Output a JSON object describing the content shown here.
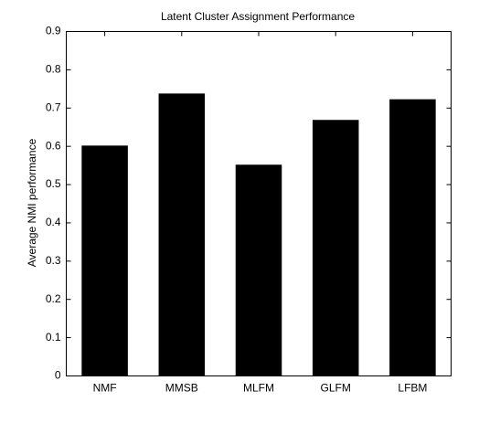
{
  "chart_data": {
    "type": "bar",
    "title": "Latent Cluster Assignment Performance",
    "y_label": "Average NMI performance",
    "categories": [
      "NMF",
      "MMSB",
      "MLFM",
      "GLFM",
      "LFBM"
    ],
    "values": [
      0.602,
      0.738,
      0.552,
      0.669,
      0.723
    ],
    "color": "#000000",
    "ylim": [
      0,
      0.9
    ],
    "yticks": [
      0,
      0.1,
      0.2,
      0.3,
      0.4,
      0.5,
      0.6,
      0.7,
      0.8,
      0.9
    ],
    "grid": false
  }
}
